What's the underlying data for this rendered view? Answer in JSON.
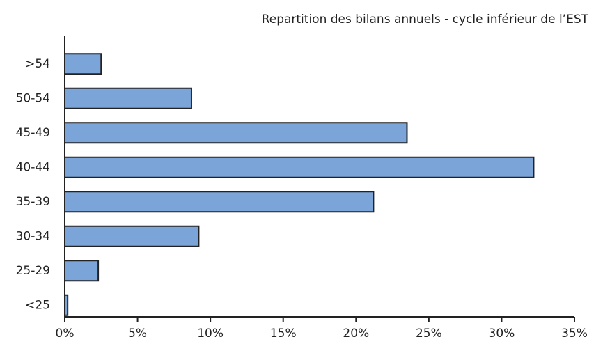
{
  "chart_data": {
    "type": "barh",
    "title": "Repartition des bilans annuels - cycle inférieur de l’EST",
    "categories": [
      ">54",
      "50-54",
      "45-49",
      "40-44",
      "35-39",
      "30-34",
      "25-29",
      "<25"
    ],
    "values": [
      2.5,
      8.7,
      23.5,
      32.2,
      21.2,
      9.2,
      2.3,
      0.2
    ],
    "color": "#7ba4d9",
    "xlim": [
      0,
      35
    ],
    "xticks": [
      {
        "value": 0,
        "label": "0%"
      },
      {
        "value": 5,
        "label": "5%"
      },
      {
        "value": 10,
        "label": "10%"
      },
      {
        "value": 15,
        "label": "15%"
      },
      {
        "value": 20,
        "label": "20%"
      },
      {
        "value": 25,
        "label": "25%"
      },
      {
        "value": 30,
        "label": "30%"
      },
      {
        "value": 35,
        "label": "35%"
      }
    ],
    "grid": false
  }
}
